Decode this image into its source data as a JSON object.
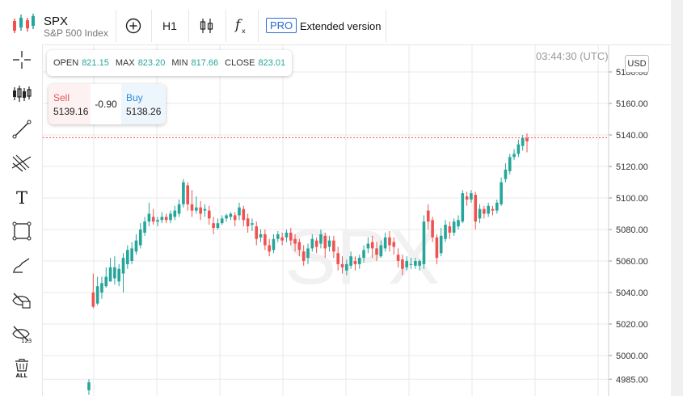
{
  "header": {
    "symbol": "SPX",
    "description": "S&P 500 Index",
    "timeframe": "H1",
    "pro_badge": "PRO",
    "extended_label": "Extended version"
  },
  "ohlc": {
    "open_label": "OPEN",
    "open": "821.15",
    "max_label": "MAX",
    "max": "823.20",
    "min_label": "MIN",
    "min": "817.66",
    "close_label": "CLOSE",
    "close": "823.01"
  },
  "trade": {
    "sell_label": "Sell",
    "sell_price": "5139.16",
    "change": "-0.90",
    "buy_label": "Buy",
    "buy_price": "5138.26"
  },
  "clock": "03:44:30 (UTC)",
  "currency": "USD",
  "watermark": "SPX",
  "colors": {
    "up": "#26a69a",
    "down": "#ef5350",
    "grid": "#e9e9e9",
    "price_line": "#ef5350",
    "accent": "#2d6bd1"
  },
  "icons": [
    "candles-icon",
    "add-circle-icon",
    "candlestick-type-icon",
    "function-icon",
    "crosshair-icon",
    "indicators-icon",
    "trend-line-icon",
    "fib-icon",
    "text-tool-icon",
    "rectangle-icon",
    "brush-icon",
    "hide-drawings-icon",
    "hide-123-icon",
    "delete-all-icon"
  ],
  "delete_all_label": "ALL",
  "chart_data": {
    "type": "candlestick",
    "y_ticks": [
      "4985.00",
      "5000.00",
      "5020.00",
      "5040.00",
      "5060.00",
      "5080.00",
      "5100.00",
      "5120.00",
      "5140.00",
      "5160.00",
      "5180.00"
    ],
    "ylim": [
      4980,
      5182
    ],
    "current_price": 5138.26,
    "candles": [
      [
        4978,
        4983,
        4975,
        4985
      ],
      [
        5040,
        5031,
        5030,
        5052
      ],
      [
        5033,
        5044,
        5032,
        5050
      ],
      [
        5040,
        5046,
        5036,
        5050
      ],
      [
        5044,
        5050,
        5043,
        5056
      ],
      [
        5047,
        5056,
        5047,
        5062
      ],
      [
        5049,
        5056,
        5045,
        5063
      ],
      [
        5047,
        5055,
        5044,
        5058
      ],
      [
        5052,
        5062,
        5040,
        5065
      ],
      [
        5058,
        5067,
        5055,
        5070
      ],
      [
        5060,
        5068,
        5058,
        5072
      ],
      [
        5066,
        5073,
        5064,
        5077
      ],
      [
        5070,
        5080,
        5068,
        5084
      ],
      [
        5078,
        5085,
        5076,
        5088
      ],
      [
        5085,
        5090,
        5082,
        5097
      ],
      [
        5088,
        5085,
        5083,
        5093
      ],
      [
        5085,
        5086,
        5082,
        5088
      ],
      [
        5086,
        5088,
        5084,
        5091
      ],
      [
        5088,
        5086,
        5084,
        5090
      ],
      [
        5086,
        5090,
        5084,
        5092
      ],
      [
        5088,
        5092,
        5086,
        5095
      ],
      [
        5090,
        5096,
        5088,
        5099
      ],
      [
        5096,
        5110,
        5094,
        5112
      ],
      [
        5108,
        5096,
        5092,
        5110
      ],
      [
        5096,
        5092,
        5088,
        5105
      ],
      [
        5092,
        5094,
        5090,
        5101
      ],
      [
        5094,
        5090,
        5086,
        5098
      ],
      [
        5092,
        5093,
        5088,
        5096
      ],
      [
        5092,
        5087,
        5083,
        5095
      ],
      [
        5084,
        5081,
        5077,
        5088
      ],
      [
        5081,
        5084,
        5080,
        5087
      ],
      [
        5084,
        5087,
        5083,
        5089
      ],
      [
        5087,
        5089,
        5085,
        5090
      ],
      [
        5088,
        5090,
        5086,
        5091
      ],
      [
        5089,
        5086,
        5082,
        5091
      ],
      [
        5089,
        5094,
        5086,
        5097
      ],
      [
        5093,
        5086,
        5082,
        5095
      ],
      [
        5087,
        5082,
        5078,
        5090
      ],
      [
        5083,
        5084,
        5079,
        5087
      ],
      [
        5082,
        5074,
        5070,
        5085
      ],
      [
        5075,
        5077,
        5072,
        5080
      ],
      [
        5077,
        5070,
        5067,
        5080
      ],
      [
        5070,
        5066,
        5063,
        5074
      ],
      [
        5067,
        5074,
        5065,
        5077
      ],
      [
        5074,
        5077,
        5072,
        5079
      ],
      [
        5075,
        5073,
        5070,
        5078
      ],
      [
        5075,
        5078,
        5072,
        5080
      ],
      [
        5078,
        5073,
        5070,
        5081
      ],
      [
        5074,
        5071,
        5066,
        5077
      ],
      [
        5072,
        5067,
        5063,
        5074
      ],
      [
        5066,
        5060,
        5057,
        5070
      ],
      [
        5062,
        5068,
        5058,
        5071
      ],
      [
        5068,
        5074,
        5066,
        5077
      ],
      [
        5073,
        5069,
        5065,
        5075
      ],
      [
        5071,
        5077,
        5068,
        5080
      ],
      [
        5076,
        5068,
        5062,
        5078
      ],
      [
        5069,
        5073,
        5066,
        5076
      ],
      [
        5073,
        5066,
        5062,
        5076
      ],
      [
        5065,
        5058,
        5054,
        5069
      ],
      [
        5058,
        5056,
        5052,
        5063
      ],
      [
        5054,
        5058,
        5051,
        5061
      ],
      [
        5057,
        5063,
        5055,
        5066
      ],
      [
        5060,
        5058,
        5054,
        5063
      ],
      [
        5058,
        5062,
        5055,
        5064
      ],
      [
        5062,
        5067,
        5059,
        5070
      ],
      [
        5068,
        5071,
        5065,
        5075
      ],
      [
        5072,
        5068,
        5062,
        5076
      ],
      [
        5068,
        5064,
        5060,
        5072
      ],
      [
        5063,
        5070,
        5062,
        5073
      ],
      [
        5068,
        5075,
        5066,
        5078
      ],
      [
        5075,
        5070,
        5066,
        5079
      ],
      [
        5072,
        5069,
        5064,
        5075
      ],
      [
        5064,
        5060,
        5056,
        5068
      ],
      [
        5061,
        5055,
        5051,
        5064
      ],
      [
        5056,
        5060,
        5054,
        5063
      ],
      [
        5058,
        5058,
        5055,
        5062
      ],
      [
        5057,
        5060,
        5055,
        5062
      ],
      [
        5057,
        5060,
        5054,
        5061
      ],
      [
        5058,
        5085,
        5055,
        5089
      ],
      [
        5092,
        5085,
        5080,
        5096
      ],
      [
        5086,
        5075,
        5072,
        5088
      ],
      [
        5075,
        5062,
        5058,
        5077
      ],
      [
        5065,
        5076,
        5063,
        5081
      ],
      [
        5074,
        5083,
        5072,
        5086
      ],
      [
        5082,
        5078,
        5074,
        5085
      ],
      [
        5078,
        5085,
        5076,
        5087
      ],
      [
        5082,
        5086,
        5080,
        5089
      ],
      [
        5085,
        5103,
        5084,
        5105
      ],
      [
        5101,
        5099,
        5095,
        5104
      ],
      [
        5099,
        5103,
        5097,
        5105
      ],
      [
        5102,
        5085,
        5080,
        5104
      ],
      [
        5087,
        5093,
        5084,
        5096
      ],
      [
        5093,
        5090,
        5087,
        5095
      ],
      [
        5090,
        5095,
        5088,
        5097
      ],
      [
        5093,
        5092,
        5089,
        5095
      ],
      [
        5092,
        5097,
        5090,
        5099
      ],
      [
        5096,
        5110,
        5095,
        5113
      ],
      [
        5112,
        5118,
        5110,
        5122
      ],
      [
        5117,
        5126,
        5115,
        5128
      ],
      [
        5126,
        5128,
        5124,
        5131
      ],
      [
        5128,
        5134,
        5126,
        5137
      ],
      [
        5133,
        5138,
        5130,
        5140
      ],
      [
        5138,
        5136,
        5129,
        5141
      ]
    ]
  }
}
